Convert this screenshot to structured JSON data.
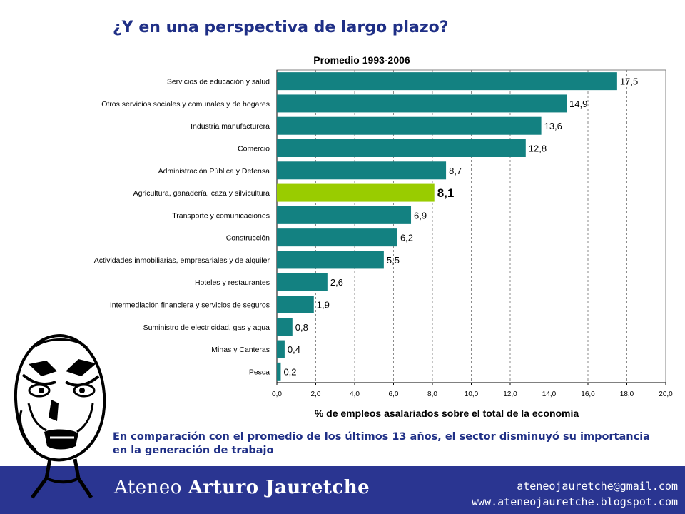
{
  "slide": {
    "title": "¿Y en una perspectiva de largo plazo?",
    "caption": "En comparación con el promedio de los últimos 13 años, el sector disminuyó su importancia en la generación de trabajo"
  },
  "footer": {
    "brand_part1": "Ateneo",
    "brand_part2": "Arturo Jauretche",
    "email": "ateneojauretche@gmail.com",
    "website": "www.ateneojauretche.blogspot.com"
  },
  "colors": {
    "bar": "#138181",
    "highlight_bar": "#99cc00",
    "title_text": "#1f2f86",
    "footer_band": "#2a3591"
  },
  "chart_data": {
    "type": "bar",
    "orientation": "horizontal",
    "title": "Promedio 1993-2006",
    "xlabel": "% de empleos asalariados sobre el total de la economía",
    "ylabel": "",
    "xlim": [
      0,
      20
    ],
    "xticks": [
      "0,0",
      "2,0",
      "4,0",
      "6,0",
      "8,0",
      "10,0",
      "12,0",
      "14,0",
      "16,0",
      "18,0",
      "20,0"
    ],
    "grid": "vertical dashed",
    "highlight_category": "Agricultura, ganadería, caza y silvicultura",
    "categories": [
      "Servicios de educación y salud",
      "Otros servicios sociales y comunales y de hogares",
      "Industria manufacturera",
      "Comercio",
      "Administración Pública y Defensa",
      "Agricultura, ganadería, caza y silvicultura",
      "Transporte y comunicaciones",
      "Construcción",
      "Actividades inmobiliarias, empresariales y de alquiler",
      "Hoteles y restaurantes",
      "Intermediación financiera y servicios de seguros",
      "Suministro de electricidad, gas y agua",
      "Minas y Canteras",
      "Pesca"
    ],
    "values": [
      17.5,
      14.9,
      13.6,
      12.8,
      8.7,
      8.1,
      6.9,
      6.2,
      5.5,
      2.6,
      1.9,
      0.8,
      0.4,
      0.2
    ],
    "value_labels": [
      "17,5",
      "14,9",
      "13,6",
      "12,8",
      "8,7",
      "8,1",
      "6,9",
      "6,2",
      "5,5",
      "2,6",
      "1,9",
      "0,8",
      "0,4",
      "0,2"
    ]
  }
}
